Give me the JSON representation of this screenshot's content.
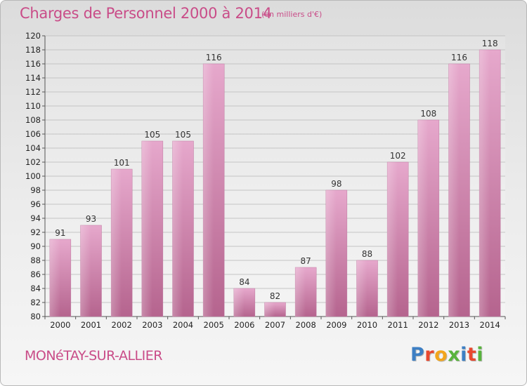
{
  "header": {
    "title": "Charges de Personnel 2000 à 2014",
    "unit": "(en milliers d'€)"
  },
  "footer": {
    "commune": "MONéTAY-SUR-ALLIER",
    "logo": "Proxiti"
  },
  "colors": {
    "bar": "#d98ab5",
    "accent": "#c94c88"
  },
  "chart_data": {
    "type": "bar",
    "title": "Charges de Personnel 2000 à 2014",
    "subtitle": "(en milliers d'€)",
    "categories": [
      "2000",
      "2001",
      "2002",
      "2003",
      "2004",
      "2005",
      "2006",
      "2007",
      "2008",
      "2009",
      "2010",
      "2011",
      "2012",
      "2013",
      "2014"
    ],
    "values": [
      91,
      93,
      101,
      105,
      105,
      116,
      84,
      82,
      87,
      98,
      88,
      102,
      108,
      116,
      118
    ],
    "ylim": [
      80,
      120
    ],
    "ytick_step": 2,
    "grid": true,
    "legend": "none"
  }
}
